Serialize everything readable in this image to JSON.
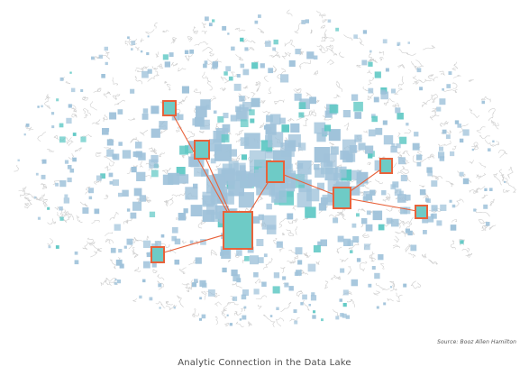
{
  "figure": {
    "caption": "Analytic Connection in the Data Lake",
    "source": "Source: Booz Allen Hamilton"
  },
  "colors": {
    "background": "#ffffff",
    "node_blue": "#9fc2da",
    "node_teal": "#5ec8c4",
    "highlight_fill": "#6ecbc6",
    "highlight_border": "#e8623a",
    "connection_line": "#e8623a",
    "squiggle": "#cfcfcf"
  }
}
